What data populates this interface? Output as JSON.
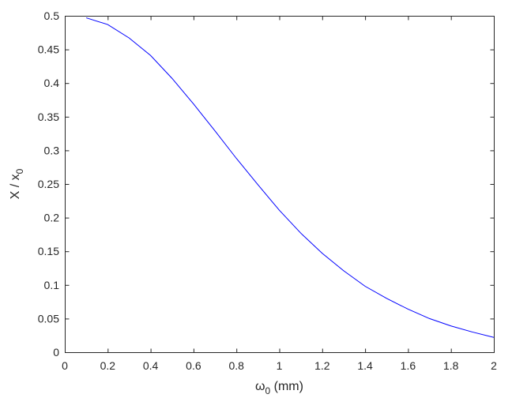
{
  "chart_data": {
    "type": "line",
    "title": "",
    "xlabel": {
      "main": "ω",
      "sub": "0",
      "rest": " (mm)"
    },
    "ylabel": {
      "main": "X / x",
      "sub": "0"
    },
    "xlim": [
      0,
      2
    ],
    "ylim": [
      0,
      0.5
    ],
    "xticks": [
      0,
      0.2,
      0.4,
      0.6,
      0.8,
      1,
      1.2,
      1.4,
      1.6,
      1.8,
      2
    ],
    "xtick_labels": [
      "0",
      "0.2",
      "0.4",
      "0.6",
      "0.8",
      "1",
      "1.2",
      "1.4",
      "1.6",
      "1.8",
      "2"
    ],
    "yticks": [
      0,
      0.05,
      0.1,
      0.15,
      0.2,
      0.25,
      0.3,
      0.35,
      0.4,
      0.45,
      0.5
    ],
    "ytick_labels": [
      "0",
      "0.05",
      "0.1",
      "0.15",
      "0.2",
      "0.25",
      "0.3",
      "0.35",
      "0.4",
      "0.45",
      "0.5"
    ],
    "grid": false,
    "series": [
      {
        "color": "#0000ff",
        "x": [
          0.1,
          0.2,
          0.3,
          0.4,
          0.5,
          0.6,
          0.7,
          0.8,
          0.9,
          1.0,
          1.1,
          1.2,
          1.3,
          1.4,
          1.5,
          1.6,
          1.7,
          1.8,
          1.9,
          2.0
        ],
        "y": [
          0.497,
          0.487,
          0.467,
          0.441,
          0.407,
          0.369,
          0.329,
          0.288,
          0.249,
          0.211,
          0.177,
          0.147,
          0.121,
          0.098,
          0.08,
          0.064,
          0.05,
          0.039,
          0.03,
          0.022
        ]
      }
    ]
  }
}
